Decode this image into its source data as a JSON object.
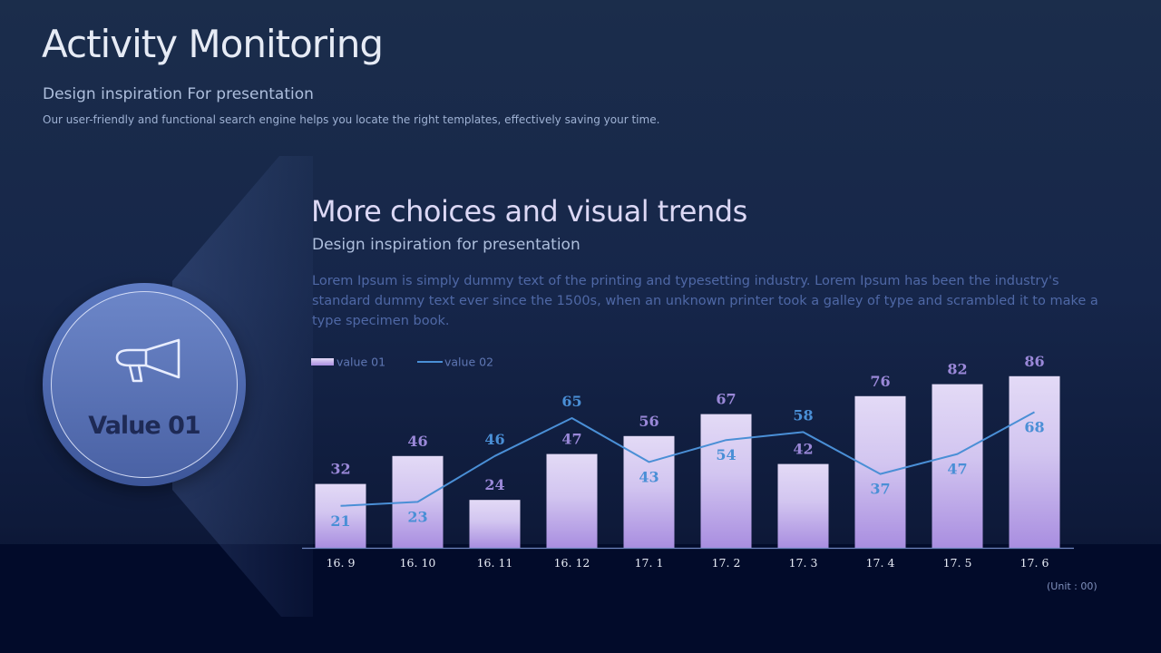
{
  "header": {
    "title": "Activity Monitoring",
    "subtitle": "Design inspiration For presentation",
    "description": "Our user-friendly and functional search engine helps you locate the right templates, effectively saving your time."
  },
  "badge": {
    "icon": "megaphone-icon",
    "label": "Value 01"
  },
  "section": {
    "title": "More choices and visual trends",
    "subtitle": "Design inspiration for presentation",
    "body": "Lorem Ipsum is simply dummy text of the printing and typesetting industry. Lorem Ipsum has been the industry's standard dummy text ever since the 1500s, when an unknown printer took a galley of type and scrambled it to make a type specimen book."
  },
  "chart_data": {
    "type": "bar",
    "categories": [
      "16. 9",
      "16. 10",
      "16. 11",
      "16. 12",
      "17. 1",
      "17. 2",
      "17. 3",
      "17. 4",
      "17. 5",
      "17. 6"
    ],
    "series": [
      {
        "name": "value 01",
        "type": "bar",
        "values": [
          32,
          46,
          24,
          47,
          56,
          67,
          42,
          76,
          82,
          86
        ],
        "color": "#c8b8ec"
      },
      {
        "name": "value 02",
        "type": "line",
        "values": [
          21,
          23,
          46,
          65,
          43,
          54,
          58,
          37,
          47,
          68
        ],
        "color": "#4a8fd6"
      }
    ],
    "legend_position": "top-left",
    "unit_note": "(Unit : 00)",
    "grid": false
  },
  "colors": {
    "bar_label": "#9a88d8",
    "line_label": "#4a8fd6",
    "axis": "#6f86c0",
    "tick_label": "#e6ebf5"
  }
}
